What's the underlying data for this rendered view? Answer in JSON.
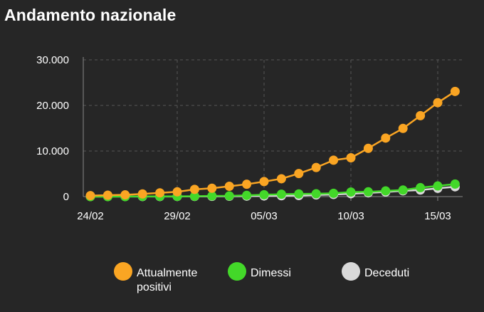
{
  "header": {
    "title": "Andamento nazionale"
  },
  "colors": {
    "background": "#262626",
    "grid": "#555555",
    "axis": "#888888"
  },
  "chart_data": {
    "type": "line",
    "title": "Andamento nazionale",
    "xlabel": "",
    "ylabel": "",
    "x": [
      "24/02",
      "25/02",
      "26/02",
      "27/02",
      "28/02",
      "29/02",
      "01/03",
      "02/03",
      "03/03",
      "04/03",
      "05/03",
      "06/03",
      "07/03",
      "08/03",
      "09/03",
      "10/03",
      "11/03",
      "12/03",
      "13/03",
      "14/03",
      "15/03",
      "16/03"
    ],
    "x_tick_labels": [
      "24/02",
      "29/02",
      "05/03",
      "10/03",
      "15/03"
    ],
    "y_tick_labels": [
      "0",
      "10.000",
      "20.000",
      "30.000"
    ],
    "ylim": [
      0,
      30000
    ],
    "grid": true,
    "legend_position": "bottom",
    "series": [
      {
        "name": "Attualmente positivi",
        "color": "#FAA523",
        "values": [
          221,
          311,
          385,
          588,
          821,
          1049,
          1577,
          1835,
          2263,
          2706,
          3296,
          3916,
          5061,
          6387,
          7985,
          8514,
          10590,
          12839,
          14955,
          17750,
          20603,
          23073
        ]
      },
      {
        "name": "Dimessi",
        "color": "#43D829",
        "values": [
          1,
          1,
          3,
          45,
          46,
          50,
          83,
          149,
          160,
          276,
          414,
          523,
          589,
          622,
          724,
          1004,
          1045,
          1258,
          1439,
          1966,
          2335,
          2749
        ]
      },
      {
        "name": "Deceduti",
        "color": "#D9D9D9",
        "values": [
          7,
          10,
          12,
          17,
          21,
          29,
          34,
          52,
          79,
          107,
          148,
          197,
          233,
          366,
          463,
          631,
          827,
          1016,
          1266,
          1441,
          1809,
          2158
        ]
      }
    ]
  }
}
